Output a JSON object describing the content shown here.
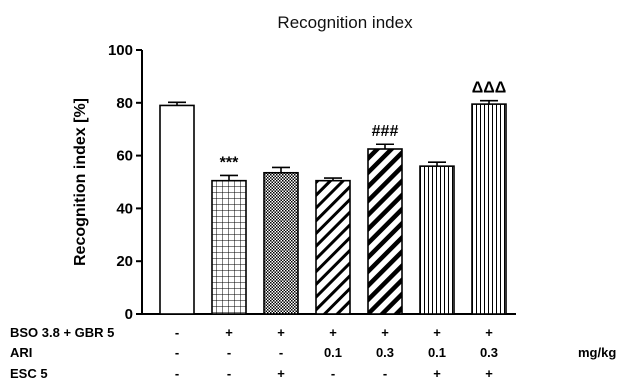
{
  "chart_data": {
    "type": "bar",
    "title": "Recognition index",
    "ylabel": "Recognition index [%]",
    "xlabel": "",
    "ylim": [
      0,
      100
    ],
    "yticks": [
      "0",
      "20",
      "40",
      "60",
      "80",
      "100"
    ],
    "grid": false,
    "values": [
      79,
      50.5,
      53.5,
      50.5,
      62.5,
      56,
      79.5
    ],
    "errors": [
      1.2,
      2.0,
      2.0,
      1.0,
      1.8,
      1.5,
      1.3
    ],
    "patterns": [
      "empty",
      "grid",
      "dots",
      "diagonal",
      "diagonal-bold",
      "vertical",
      "vertical"
    ],
    "annotations": [
      "",
      "***",
      "",
      "",
      "###",
      "",
      "ΔΔΔ"
    ],
    "treatment_rows": [
      {
        "label": "BSO 3.8 + GBR 5",
        "cells": [
          "-",
          "+",
          "+",
          "+",
          "+",
          "+",
          "+"
        ],
        "unit": ""
      },
      {
        "label": "ARI",
        "cells": [
          "-",
          "-",
          "-",
          "0.1",
          "0.3",
          "0.1",
          "0.3"
        ],
        "unit": "mg/kg"
      },
      {
        "label": "ESC 5",
        "cells": [
          "-",
          "-",
          "+",
          "-",
          "-",
          "+",
          "+"
        ],
        "unit": ""
      }
    ]
  }
}
